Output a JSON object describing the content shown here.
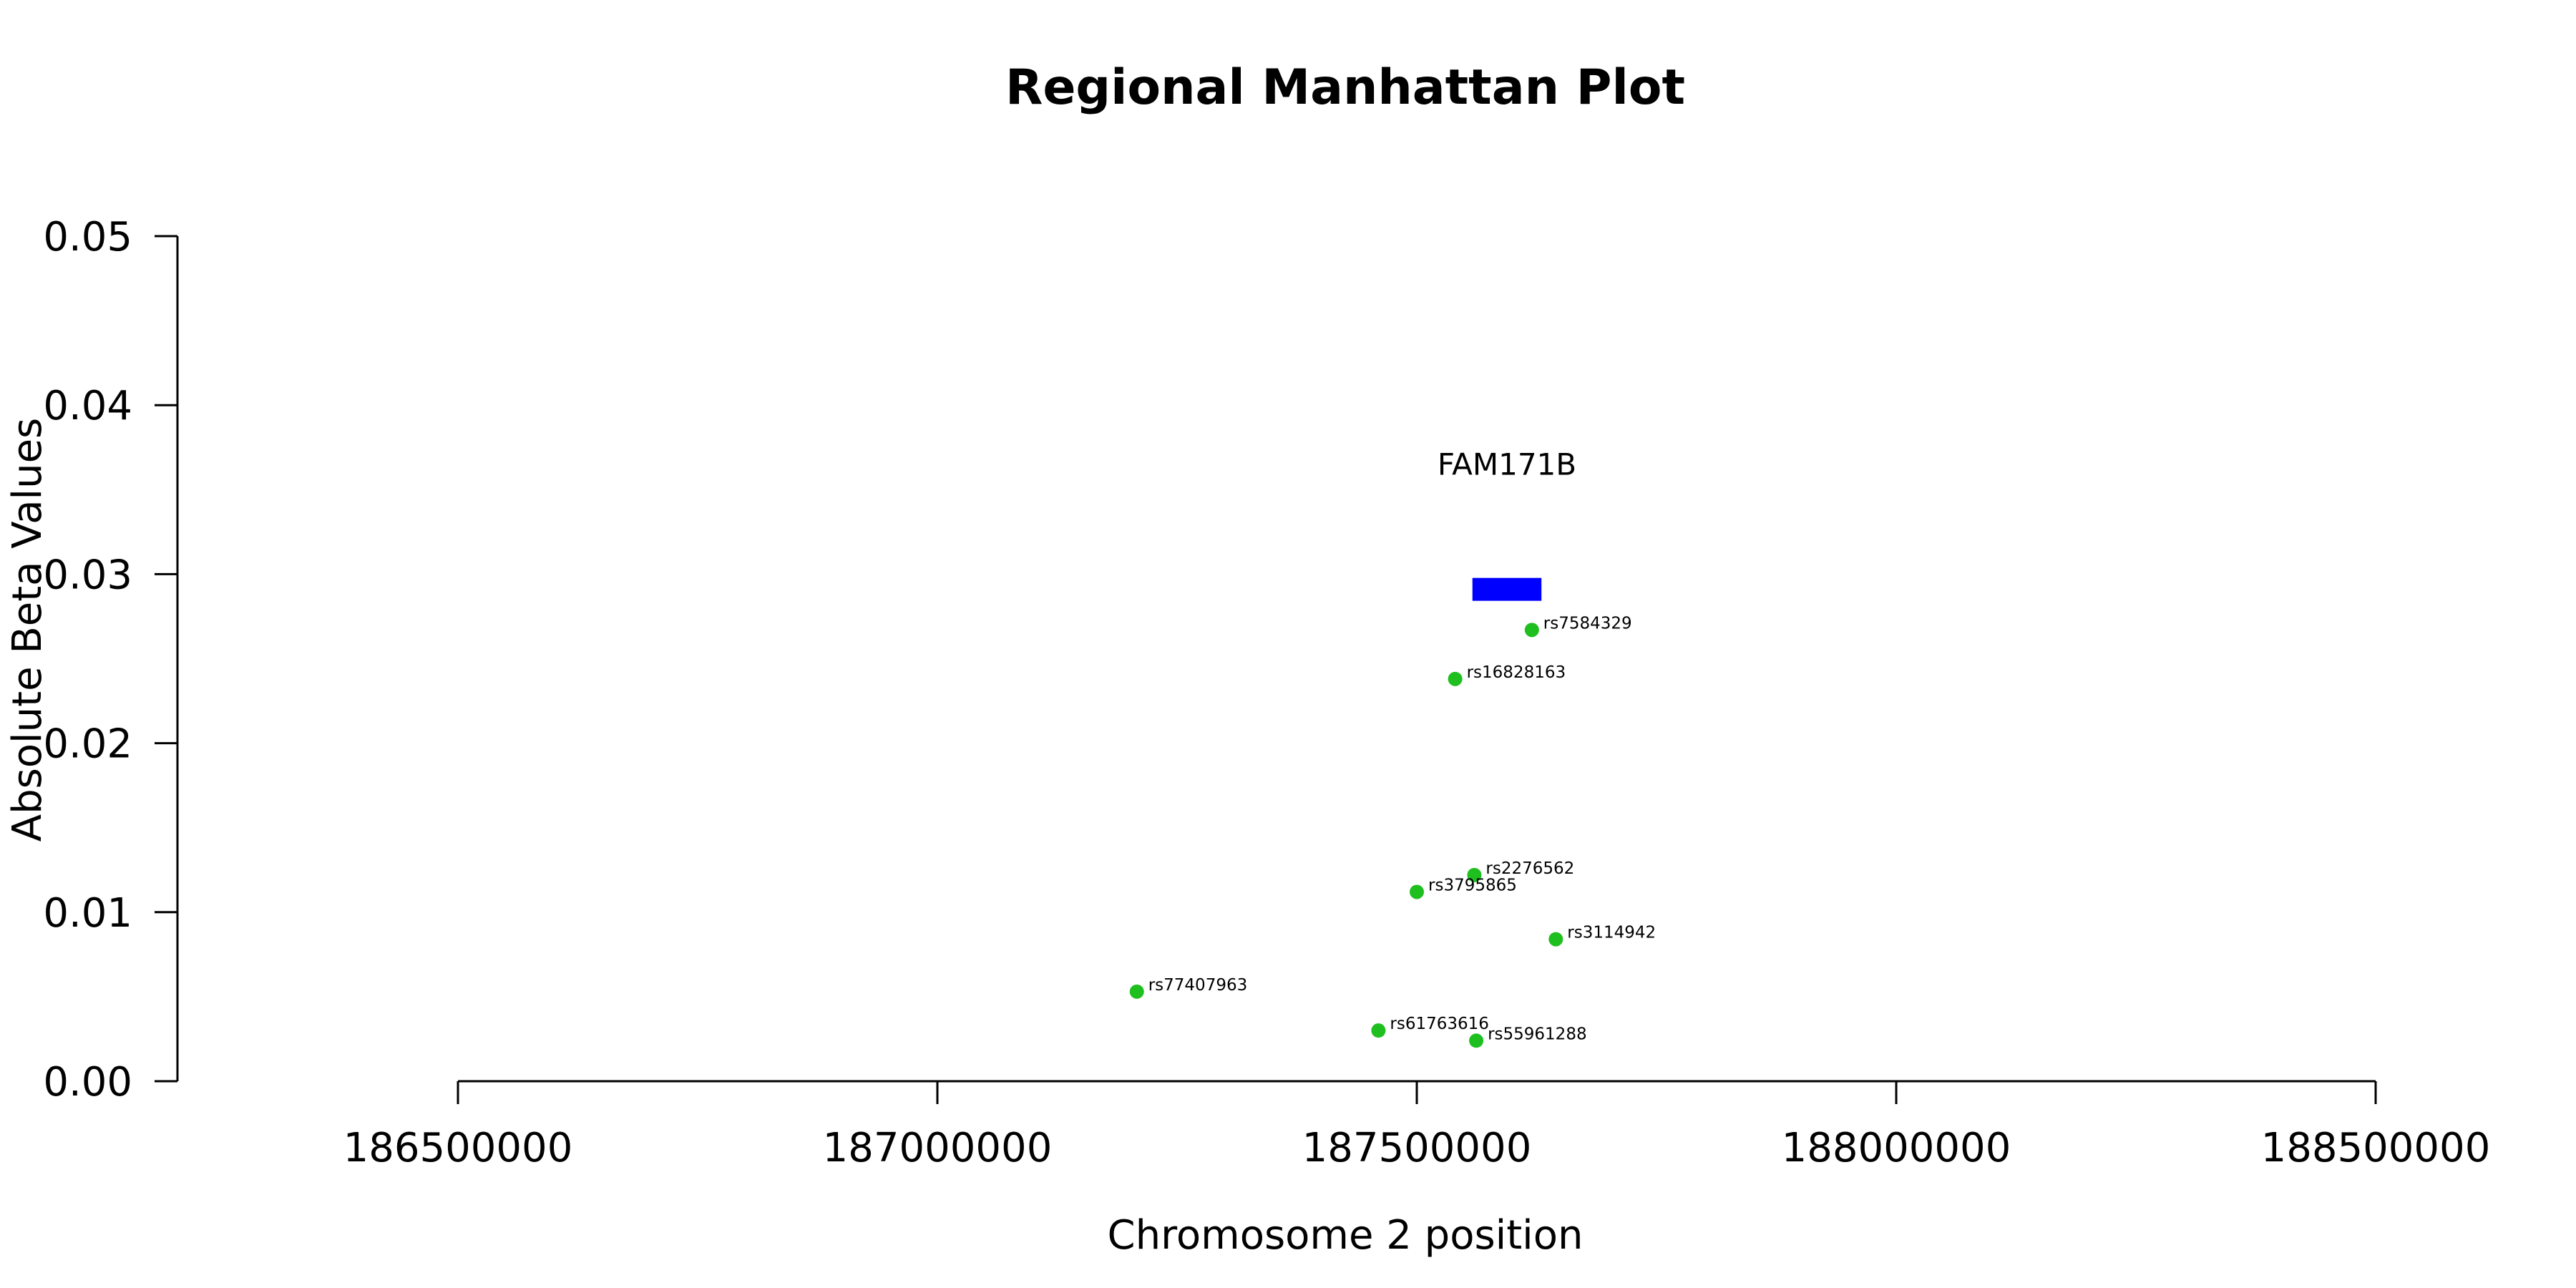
{
  "chart_data": {
    "type": "scatter",
    "title": "Regional Manhattan Plot",
    "xlabel": "Chromosome 2 position",
    "ylabel": "Absolute Beta Values",
    "xlim": [
      186500000,
      188500000
    ],
    "ylim": [
      0,
      0.05
    ],
    "x_ticks": [
      "186500000",
      "187000000",
      "187500000",
      "188000000",
      "188500000"
    ],
    "y_ticks": [
      "0.00",
      "0.01",
      "0.02",
      "0.03",
      "0.04",
      "0.05"
    ],
    "point_color": "#1fbf1f",
    "gene_color": "#0000ff",
    "grid": false,
    "points": [
      {
        "snp": "rs7584329",
        "x": 187620000,
        "y": 0.0267
      },
      {
        "snp": "rs16828163",
        "x": 187540000,
        "y": 0.0238
      },
      {
        "snp": "rs2276562",
        "x": 187560000,
        "y": 0.0122
      },
      {
        "snp": "rs3795865",
        "x": 187500000,
        "y": 0.0112
      },
      {
        "snp": "rs3114942",
        "x": 187645000,
        "y": 0.0084
      },
      {
        "snp": "rs77407963",
        "x": 187208000,
        "y": 0.0053
      },
      {
        "snp": "rs61763616",
        "x": 187460000,
        "y": 0.003
      },
      {
        "snp": "rs55961288",
        "x": 187562000,
        "y": 0.0024
      }
    ],
    "genes": [
      {
        "name": "FAM171B",
        "start": 187558000,
        "end": 187630000,
        "y": 0.0291
      }
    ]
  }
}
